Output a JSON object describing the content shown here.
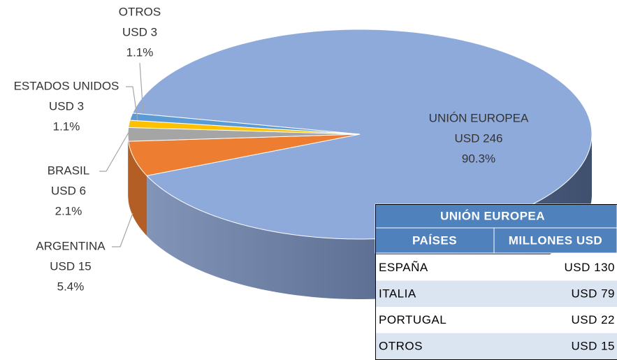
{
  "chart_data": {
    "type": "pie",
    "labels": [
      "UNIÓN EUROPEA",
      "ARGENTINA",
      "BRASIL",
      "ESTADOS UNIDOS",
      "OTROS"
    ],
    "values": [
      90.3,
      5.4,
      2.1,
      1.1,
      1.1
    ],
    "value_labels": [
      "90.3%",
      "5.4%",
      "2.1%",
      "1.1%",
      "1.1%"
    ],
    "amounts": [
      246,
      15,
      6,
      3,
      3
    ],
    "amount_labels": [
      "USD 246",
      "USD 15",
      "USD 6",
      "USD 3",
      "USD 3"
    ],
    "colors": [
      "#8eaadb",
      "#ed7d31",
      "#a5a5a5",
      "#ffc000",
      "#5b9bd5"
    ]
  },
  "table": {
    "title": "UNIÓN EUROPEA",
    "columns": [
      "PAÍSES",
      "MILLONES USD"
    ],
    "rows": [
      [
        "ESPAÑA",
        "USD 130"
      ],
      [
        "ITALIA",
        "USD 79"
      ],
      [
        "PORTUGAL",
        "USD 22"
      ],
      [
        "OTROS",
        "USD 15"
      ]
    ]
  }
}
